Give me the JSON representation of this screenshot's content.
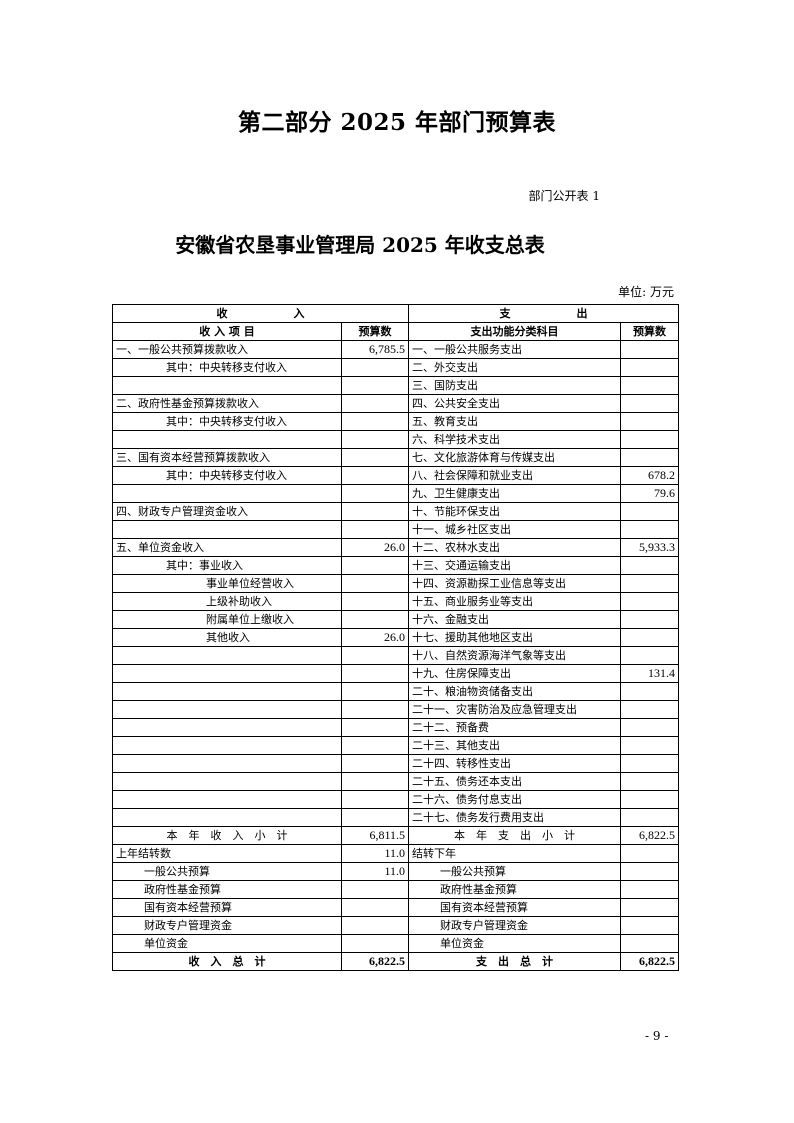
{
  "part_title": "第二部分  2025 年部门预算表",
  "table_no": "部门公开表 1",
  "doc_title": "安徽省农垦事业管理局 2025 年收支总表",
  "unit": "单位: 万元",
  "header": {
    "income_group": "收　　　　　　入",
    "expense_group": "支　　　　　　出",
    "income_item": "收 入 项 目",
    "income_amount": "预算数",
    "expense_item": "支出功能分类科目",
    "expense_amount": "预算数"
  },
  "rows": [
    {
      "in": "一、一般公共预算拨款收入",
      "in_indent": 0,
      "in_val": "6,785.5",
      "out": "一、一般公共服务支出",
      "out_indent": 0,
      "out_val": ""
    },
    {
      "in": "其中：中央转移支付收入",
      "in_indent": 1,
      "in_val": "",
      "out": "二、外交支出",
      "out_indent": 0,
      "out_val": ""
    },
    {
      "in": "",
      "in_indent": 0,
      "in_val": "",
      "out": "三、国防支出",
      "out_indent": 0,
      "out_val": ""
    },
    {
      "in": "二、政府性基金预算拨款收入",
      "in_indent": 0,
      "in_val": "",
      "out": "四、公共安全支出",
      "out_indent": 0,
      "out_val": ""
    },
    {
      "in": "其中：中央转移支付收入",
      "in_indent": 1,
      "in_val": "",
      "out": "五、教育支出",
      "out_indent": 0,
      "out_val": ""
    },
    {
      "in": "",
      "in_indent": 0,
      "in_val": "",
      "out": "六、科学技术支出",
      "out_indent": 0,
      "out_val": ""
    },
    {
      "in": "三、国有资本经营预算拨款收入",
      "in_indent": 0,
      "in_val": "",
      "out": "七、文化旅游体育与传媒支出",
      "out_indent": 0,
      "out_val": ""
    },
    {
      "in": "其中：中央转移支付收入",
      "in_indent": 1,
      "in_val": "",
      "out": "八、社会保障和就业支出",
      "out_indent": 0,
      "out_val": "678.2"
    },
    {
      "in": "",
      "in_indent": 0,
      "in_val": "",
      "out": "九、卫生健康支出",
      "out_indent": 0,
      "out_val": "79.6"
    },
    {
      "in": "四、财政专户管理资金收入",
      "in_indent": 0,
      "in_val": "",
      "out": "十、节能环保支出",
      "out_indent": 0,
      "out_val": ""
    },
    {
      "in": "",
      "in_indent": 0,
      "in_val": "",
      "out": "十一、城乡社区支出",
      "out_indent": 0,
      "out_val": ""
    },
    {
      "in": "五、单位资金收入",
      "in_indent": 0,
      "in_val": "26.0",
      "out": "十二、农林水支出",
      "out_indent": 0,
      "out_val": "5,933.3"
    },
    {
      "in": "其中：事业收入",
      "in_indent": 1,
      "in_val": "",
      "out": "十三、交通运输支出",
      "out_indent": 0,
      "out_val": ""
    },
    {
      "in": "事业单位经营收入",
      "in_indent": 2,
      "in_val": "",
      "out": "十四、资源勘探工业信息等支出",
      "out_indent": 0,
      "out_val": ""
    },
    {
      "in": "上级补助收入",
      "in_indent": 2,
      "in_val": "",
      "out": "十五、商业服务业等支出",
      "out_indent": 0,
      "out_val": ""
    },
    {
      "in": "附属单位上缴收入",
      "in_indent": 2,
      "in_val": "",
      "out": "十六、金融支出",
      "out_indent": 0,
      "out_val": ""
    },
    {
      "in": "其他收入",
      "in_indent": 2,
      "in_val": "26.0",
      "out": "十七、援助其他地区支出",
      "out_indent": 0,
      "out_val": ""
    },
    {
      "in": "",
      "in_indent": 0,
      "in_val": "",
      "out": "十八、自然资源海洋气象等支出",
      "out_indent": 0,
      "out_val": ""
    },
    {
      "in": "",
      "in_indent": 0,
      "in_val": "",
      "out": "十九、住房保障支出",
      "out_indent": 0,
      "out_val": "131.4"
    },
    {
      "in": "",
      "in_indent": 0,
      "in_val": "",
      "out": "二十、粮油物资储备支出",
      "out_indent": 0,
      "out_val": ""
    },
    {
      "in": "",
      "in_indent": 0,
      "in_val": "",
      "out": "二十一、灾害防治及应急管理支出",
      "out_indent": 0,
      "out_val": ""
    },
    {
      "in": "",
      "in_indent": 0,
      "in_val": "",
      "out": "二十二、预备费",
      "out_indent": 0,
      "out_val": ""
    },
    {
      "in": "",
      "in_indent": 0,
      "in_val": "",
      "out": "二十三、其他支出",
      "out_indent": 0,
      "out_val": ""
    },
    {
      "in": "",
      "in_indent": 0,
      "in_val": "",
      "out": "二十四、转移性支出",
      "out_indent": 0,
      "out_val": ""
    },
    {
      "in": "",
      "in_indent": 0,
      "in_val": "",
      "out": "二十五、债务还本支出",
      "out_indent": 0,
      "out_val": ""
    },
    {
      "in": "",
      "in_indent": 0,
      "in_val": "",
      "out": "二十六、债务付息支出",
      "out_indent": 0,
      "out_val": ""
    },
    {
      "in": "",
      "in_indent": 0,
      "in_val": "",
      "out": "二十七、债务发行费用支出",
      "out_indent": 0,
      "out_val": ""
    }
  ],
  "subtotal": {
    "in": "本　年　收　入　小　计",
    "in_val": "6,811.5",
    "out": "本　年　支　出　小　计",
    "out_val": "6,822.5"
  },
  "carry_rows": [
    {
      "in": "上年结转数",
      "in_indent": 0,
      "in_val": "11.0",
      "out": "结转下年",
      "out_indent": 0,
      "out_val": ""
    },
    {
      "in": "一般公共预算",
      "in_indent": 3,
      "in_val": "11.0",
      "out": "一般公共预算",
      "out_indent": 3,
      "out_val": ""
    },
    {
      "in": "政府性基金预算",
      "in_indent": 3,
      "in_val": "",
      "out": "政府性基金预算",
      "out_indent": 3,
      "out_val": ""
    },
    {
      "in": "国有资本经营预算",
      "in_indent": 3,
      "in_val": "",
      "out": "国有资本经营预算",
      "out_indent": 3,
      "out_val": ""
    },
    {
      "in": "财政专户管理资金",
      "in_indent": 3,
      "in_val": "",
      "out": "财政专户管理资金",
      "out_indent": 3,
      "out_val": ""
    },
    {
      "in": "单位资金",
      "in_indent": 3,
      "in_val": "",
      "out": "单位资金",
      "out_indent": 3,
      "out_val": ""
    }
  ],
  "total": {
    "in": "收　入　总　计",
    "in_val": "6,822.5",
    "out": "支　出　总　计",
    "out_val": "6,822.5"
  },
  "page_no": "- 9 -"
}
